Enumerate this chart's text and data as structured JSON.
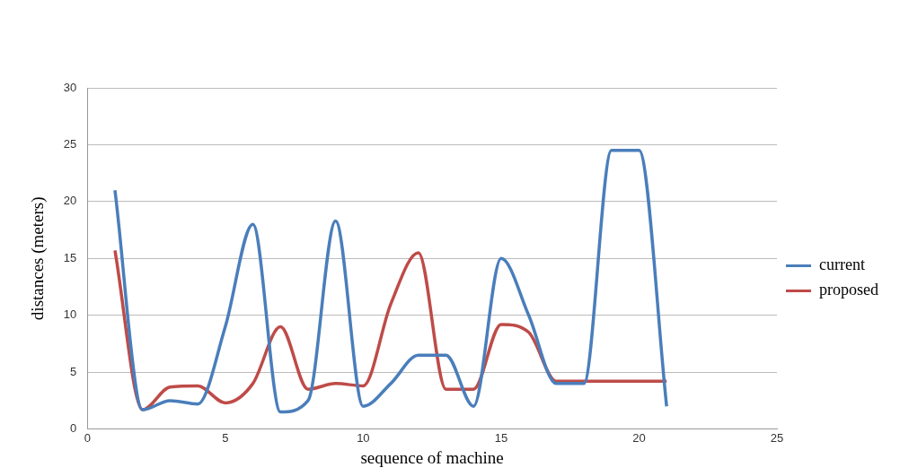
{
  "chart_data": {
    "type": "line",
    "xlabel": "sequence of machine",
    "ylabel": "distances (meters)",
    "x": [
      1,
      2,
      3,
      4,
      5,
      6,
      7,
      8,
      9,
      10,
      11,
      12,
      13,
      14,
      15,
      16,
      17,
      18,
      19,
      20,
      21
    ],
    "series": [
      {
        "name": "current",
        "color": "#4a7ebb",
        "values": [
          21,
          1.7,
          2.5,
          2.2,
          9,
          18,
          1.5,
          2.5,
          18.3,
          2,
          4,
          6.5,
          6.5,
          2,
          15,
          10,
          4,
          4,
          24.5,
          24.5,
          2
        ]
      },
      {
        "name": "proposed",
        "color": "#be4b48",
        "values": [
          15.7,
          1.7,
          3.7,
          3.8,
          2.3,
          4,
          9,
          3.5,
          4,
          3.8,
          11,
          15.5,
          3.5,
          3.5,
          9.2,
          8.5,
          4.2,
          4.2,
          4.2,
          4.2,
          4.2
        ]
      }
    ],
    "xlim": [
      0,
      25
    ],
    "xticks": [
      0,
      5,
      10,
      15,
      20,
      25
    ],
    "ylim": [
      0,
      30
    ],
    "yticks": [
      0,
      5,
      10,
      15,
      20,
      25,
      30
    ],
    "grid": "y",
    "legend": "right",
    "marker": "none",
    "line_style": "solid"
  }
}
